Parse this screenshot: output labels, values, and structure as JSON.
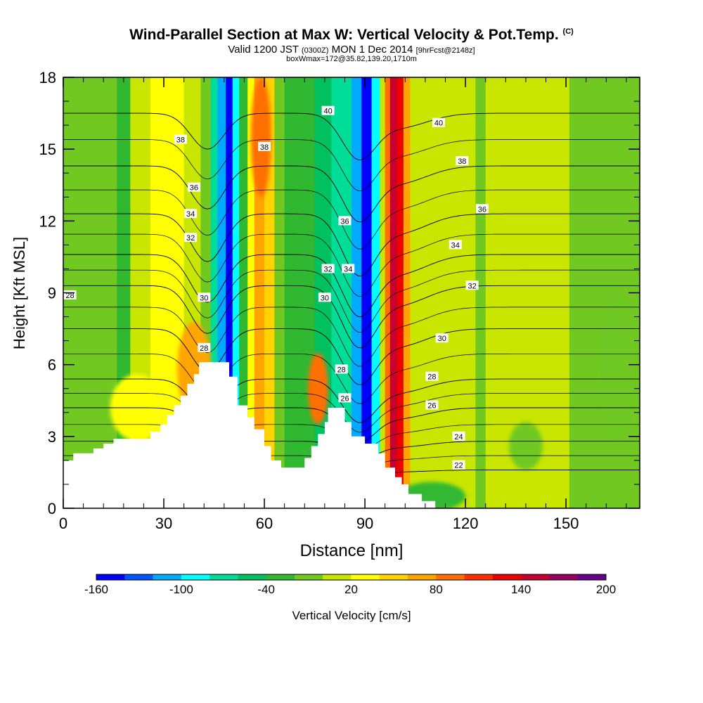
{
  "header": {
    "title": "Wind-Parallel Section at Max W: Vertical Velocity & Pot.Temp.",
    "copyright": "(C)",
    "valid_a": "Valid 1200 JST",
    "valid_b": "(0300Z)",
    "valid_c": "MON 1 Dec 2014",
    "valid_d": "[9hrFcst@2148z]",
    "box_info": "boxWmax=172@35.82,139.20,1710m"
  },
  "chart_data": {
    "type": "heatmap",
    "xlabel": "Distance [nm]",
    "ylabel": "Height [Kft MSL]",
    "xlim": [
      0,
      172
    ],
    "ylim": [
      0,
      18
    ],
    "x_ticks": [
      0,
      30,
      60,
      90,
      120,
      150
    ],
    "y_ticks": [
      0,
      3,
      6,
      9,
      12,
      15,
      18
    ],
    "colorbar": {
      "label": "Vertical Velocity [cm/s]",
      "range": [
        -160,
        200
      ],
      "step": 20,
      "tick_labels": [
        -160,
        -100,
        -40,
        20,
        80,
        140,
        200
      ],
      "colors": [
        "#0000ff",
        "#0055ff",
        "#00aaff",
        "#00ffff",
        "#00dd99",
        "#00c060",
        "#30b830",
        "#70c820",
        "#c8e600",
        "#ffff00",
        "#ffd200",
        "#ffa500",
        "#ff7000",
        "#ff3000",
        "#ee0000",
        "#c80030",
        "#960060",
        "#64008c"
      ]
    },
    "velocity_bands": [
      {
        "x0": 0,
        "x1": 16,
        "w": -10
      },
      {
        "x0": 16,
        "x1": 20,
        "w": -30
      },
      {
        "x0": 20,
        "x1": 26,
        "w": 10
      },
      {
        "x0": 26,
        "x1": 36,
        "w": 30
      },
      {
        "x0": 36,
        "x1": 41,
        "w": 10
      },
      {
        "x0": 41,
        "x1": 44,
        "w": -20
      },
      {
        "x0": 44,
        "x1": 46,
        "w": -80
      },
      {
        "x0": 46,
        "x1": 48.5,
        "w": -110
      },
      {
        "x0": 48.5,
        "x1": 50.5,
        "w": -150
      },
      {
        "x0": 50.5,
        "x1": 52.5,
        "w": -90
      },
      {
        "x0": 52.5,
        "x1": 55,
        "w": -30
      },
      {
        "x0": 55,
        "x1": 57,
        "w": 20
      },
      {
        "x0": 57,
        "x1": 60,
        "w": 60
      },
      {
        "x0": 60,
        "x1": 63,
        "w": 40
      },
      {
        "x0": 63,
        "x1": 66,
        "w": -10
      },
      {
        "x0": 66,
        "x1": 75,
        "w": -40
      },
      {
        "x0": 75,
        "x1": 80,
        "w": -50
      },
      {
        "x0": 80,
        "x1": 86,
        "w": -80
      },
      {
        "x0": 86,
        "x1": 89,
        "w": -110
      },
      {
        "x0": 89,
        "x1": 92,
        "w": -150
      },
      {
        "x0": 92,
        "x1": 94.5,
        "w": -100
      },
      {
        "x0": 94.5,
        "x1": 96,
        "w": 10
      },
      {
        "x0": 96,
        "x1": 97.5,
        "w": 90
      },
      {
        "x0": 97.5,
        "x1": 99.5,
        "w": 140
      },
      {
        "x0": 99.5,
        "x1": 101.5,
        "w": 120
      },
      {
        "x0": 101.5,
        "x1": 103.5,
        "w": 60
      },
      {
        "x0": 103.5,
        "x1": 106,
        "w": 10
      },
      {
        "x0": 106,
        "x1": 113,
        "w": 10
      },
      {
        "x0": 113,
        "x1": 123,
        "w": 0
      },
      {
        "x0": 123,
        "x1": 126,
        "w": -20
      },
      {
        "x0": 126,
        "x1": 151,
        "w": 0
      },
      {
        "x0": 151,
        "x1": 160,
        "w": -20
      },
      {
        "x0": 160,
        "x1": 172,
        "w": -10
      }
    ],
    "velocity_blobs": [
      {
        "x": 22,
        "y": 4.2,
        "rx": 8,
        "ry": 1.4,
        "w": 30
      },
      {
        "x": 39,
        "y": 5.8,
        "rx": 5,
        "ry": 2.0,
        "w": 60
      },
      {
        "x": 59,
        "y": 15.5,
        "rx": 3,
        "ry": 2.5,
        "w": 80
      },
      {
        "x": 76,
        "y": 5.0,
        "rx": 3,
        "ry": 1.5,
        "w": 80
      },
      {
        "x": 110,
        "y": 0.5,
        "rx": 10,
        "ry": 0.6,
        "w": -30
      },
      {
        "x": 138,
        "y": 2.6,
        "rx": 5,
        "ry": 1.0,
        "w": -10
      },
      {
        "x": 165,
        "y": 6.0,
        "rx": 5,
        "ry": 3.0,
        "w": -20
      }
    ],
    "terrain": [
      [
        0,
        1.0
      ],
      [
        0,
        2.0
      ],
      [
        3,
        2.0
      ],
      [
        3,
        2.3
      ],
      [
        9,
        2.3
      ],
      [
        9,
        2.5
      ],
      [
        12,
        2.5
      ],
      [
        12,
        2.7
      ],
      [
        15,
        2.7
      ],
      [
        15,
        2.9
      ],
      [
        26,
        2.9
      ],
      [
        26,
        3.2
      ],
      [
        29,
        3.2
      ],
      [
        29,
        3.5
      ],
      [
        31,
        3.5
      ],
      [
        31,
        3.9
      ],
      [
        33,
        3.9
      ],
      [
        33,
        4.3
      ],
      [
        35,
        4.3
      ],
      [
        35,
        4.7
      ],
      [
        37,
        4.7
      ],
      [
        37,
        5.2
      ],
      [
        39,
        5.2
      ],
      [
        39,
        5.6
      ],
      [
        40.5,
        5.6
      ],
      [
        40.5,
        6.1
      ],
      [
        49.5,
        6.1
      ],
      [
        49.5,
        5.5
      ],
      [
        52,
        5.5
      ],
      [
        52,
        4.3
      ],
      [
        55,
        4.3
      ],
      [
        55,
        3.8
      ],
      [
        57,
        3.8
      ],
      [
        57,
        3.3
      ],
      [
        60,
        3.3
      ],
      [
        60,
        2.6
      ],
      [
        62,
        2.6
      ],
      [
        62,
        2.0
      ],
      [
        65,
        2.0
      ],
      [
        65,
        1.7
      ],
      [
        72,
        1.7
      ],
      [
        72,
        2.1
      ],
      [
        74,
        2.1
      ],
      [
        74,
        2.6
      ],
      [
        76,
        2.6
      ],
      [
        76,
        3.1
      ],
      [
        78,
        3.1
      ],
      [
        78,
        3.6
      ],
      [
        79,
        3.6
      ],
      [
        79,
        4.2
      ],
      [
        84,
        4.2
      ],
      [
        84,
        3.6
      ],
      [
        86,
        3.6
      ],
      [
        86,
        3.0
      ],
      [
        90,
        3.0
      ],
      [
        90,
        2.7
      ],
      [
        94,
        2.7
      ],
      [
        94,
        2.3
      ],
      [
        96,
        2.3
      ],
      [
        96,
        1.7
      ],
      [
        99,
        1.7
      ],
      [
        99,
        1.3
      ],
      [
        101,
        1.3
      ],
      [
        101,
        1.0
      ],
      [
        103,
        1.0
      ],
      [
        103,
        0.6
      ],
      [
        107,
        0.6
      ],
      [
        107,
        0.3
      ],
      [
        111,
        0.3
      ],
      [
        111,
        0.0
      ]
    ],
    "theta_contours": [
      {
        "label": "22",
        "base": 1.6,
        "amp": 0.2
      },
      {
        "label": "24",
        "base": 2.8,
        "amp": 0.6
      },
      {
        "label": "26",
        "base": 4.2,
        "amp": 1.1
      },
      {
        "label": "28",
        "base": 5.4,
        "amp": 1.4
      },
      {
        "label": "30",
        "base": 7.5,
        "amp": 1.8
      },
      {
        "label": "32",
        "base": 9.3,
        "amp": 2.0
      },
      {
        "label": "34",
        "base": 10.6,
        "amp": 2.0
      },
      {
        "label": "36",
        "base": 12.3,
        "amp": 2.0
      },
      {
        "label": "38",
        "base": 14.3,
        "amp": 1.8
      },
      {
        "label": "40",
        "base": 16.5,
        "amp": 1.5
      }
    ],
    "contour_labels": [
      {
        "text": "28",
        "x": 2,
        "y": 8.9
      },
      {
        "text": "38",
        "x": 35,
        "y": 15.4
      },
      {
        "text": "36",
        "x": 39,
        "y": 13.4
      },
      {
        "text": "34",
        "x": 38,
        "y": 12.3
      },
      {
        "text": "32",
        "x": 38,
        "y": 11.3
      },
      {
        "text": "30",
        "x": 42,
        "y": 8.8
      },
      {
        "text": "28",
        "x": 42,
        "y": 6.7
      },
      {
        "text": "38",
        "x": 60,
        "y": 15.1
      },
      {
        "text": "40",
        "x": 79,
        "y": 16.6
      },
      {
        "text": "36",
        "x": 84,
        "y": 12.0
      },
      {
        "text": "32",
        "x": 79,
        "y": 10.0
      },
      {
        "text": "34",
        "x": 85,
        "y": 10.0
      },
      {
        "text": "30",
        "x": 78,
        "y": 8.8
      },
      {
        "text": "28",
        "x": 83,
        "y": 5.8
      },
      {
        "text": "26",
        "x": 84,
        "y": 4.6
      },
      {
        "text": "40",
        "x": 112,
        "y": 16.1
      },
      {
        "text": "38",
        "x": 119,
        "y": 14.5
      },
      {
        "text": "36",
        "x": 125,
        "y": 12.5
      },
      {
        "text": "34",
        "x": 117,
        "y": 11.0
      },
      {
        "text": "32",
        "x": 122,
        "y": 9.3
      },
      {
        "text": "30",
        "x": 113,
        "y": 7.1
      },
      {
        "text": "28",
        "x": 110,
        "y": 5.5
      },
      {
        "text": "26",
        "x": 110,
        "y": 4.3
      },
      {
        "text": "24",
        "x": 118,
        "y": 3.0
      },
      {
        "text": "22",
        "x": 118,
        "y": 1.8
      }
    ]
  }
}
